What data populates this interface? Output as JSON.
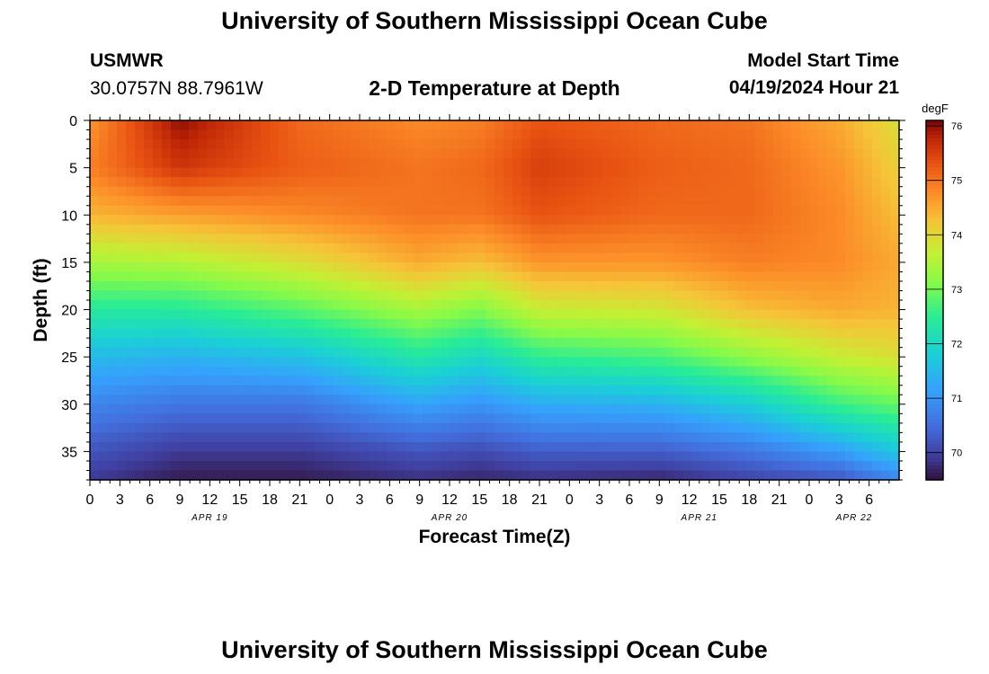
{
  "header": {
    "title": "University of Southern Mississippi Ocean Cube",
    "station": "USMWR",
    "coords": "30.0757N  88.7961W",
    "plot_title": "2-D Temperature at Depth",
    "model_label": "Model Start Time",
    "model_time": "04/19/2024 Hour 21"
  },
  "footer": {
    "title": "University of Southern Mississippi Ocean Cube"
  },
  "chart_data": {
    "type": "heatmap",
    "title": "2-D Temperature at Depth",
    "xlabel": "Forecast Time(Z)",
    "ylabel": "Depth (ft)",
    "x_range_hours": [
      0,
      81
    ],
    "x_tick_labels": [
      "0",
      "3",
      "6",
      "9",
      "12",
      "15",
      "18",
      "21",
      "0",
      "3",
      "6",
      "9",
      "12",
      "15",
      "18",
      "21",
      "0",
      "3",
      "6",
      "9",
      "12",
      "15",
      "18",
      "21",
      "0",
      "3",
      "6"
    ],
    "date_labels": [
      {
        "label": "APR 19",
        "hour": 12
      },
      {
        "label": "APR 20",
        "hour": 36
      },
      {
        "label": "APR 21",
        "hour": 61
      },
      {
        "label": "APR 22",
        "hour": 76.5
      }
    ],
    "ylim": [
      38,
      0
    ],
    "y_ticks": [
      0,
      5,
      10,
      15,
      20,
      25,
      30,
      35
    ],
    "colorbar": {
      "unit": "degF",
      "min": 69.5,
      "max": 76.1,
      "ticks": [
        70,
        71,
        72,
        73,
        74,
        75,
        76
      ]
    },
    "profile_columns": [
      {
        "hour": 0,
        "depth": [
          0,
          5,
          10,
          15,
          20,
          25,
          30,
          35,
          38
        ],
        "temp": [
          74.7,
          74.9,
          74.4,
          73.4,
          72.4,
          71.5,
          70.8,
          70.2,
          69.9
        ]
      },
      {
        "hour": 9,
        "depth": [
          0,
          5,
          10,
          15,
          20,
          25,
          30,
          35,
          38
        ],
        "temp": [
          76.0,
          75.6,
          74.6,
          73.5,
          72.4,
          71.4,
          70.6,
          69.9,
          69.6
        ]
      },
      {
        "hour": 21,
        "depth": [
          0,
          5,
          10,
          15,
          20,
          25,
          30,
          35,
          38
        ],
        "temp": [
          75.1,
          75.2,
          74.8,
          73.9,
          72.8,
          71.6,
          70.6,
          69.9,
          69.6
        ]
      },
      {
        "hour": 33,
        "depth": [
          0,
          5,
          10,
          15,
          20,
          25,
          30,
          35,
          38
        ],
        "temp": [
          74.8,
          75.0,
          75.0,
          74.5,
          73.4,
          72.3,
          71.2,
          70.2,
          69.8
        ]
      },
      {
        "hour": 39,
        "depth": [
          0,
          5,
          10,
          15,
          20,
          25,
          30,
          35,
          38
        ],
        "temp": [
          74.9,
          75.1,
          75.0,
          74.3,
          73.1,
          72.0,
          71.0,
          70.1,
          69.7
        ]
      },
      {
        "hour": 45,
        "depth": [
          0,
          5,
          10,
          15,
          20,
          25,
          30,
          35,
          38
        ],
        "temp": [
          75.3,
          75.5,
          75.3,
          74.7,
          73.7,
          72.5,
          71.3,
          70.3,
          69.8
        ]
      },
      {
        "hour": 57,
        "depth": [
          0,
          5,
          10,
          15,
          20,
          25,
          30,
          35,
          38
        ],
        "temp": [
          75.1,
          75.2,
          75.1,
          74.7,
          73.8,
          72.7,
          71.4,
          70.3,
          69.7
        ]
      },
      {
        "hour": 66,
        "depth": [
          0,
          5,
          10,
          15,
          20,
          25,
          30,
          35,
          38
        ],
        "temp": [
          75.0,
          75.1,
          75.1,
          74.9,
          74.3,
          73.2,
          71.8,
          70.6,
          70.0
        ]
      },
      {
        "hour": 75,
        "depth": [
          0,
          5,
          10,
          15,
          20,
          25,
          30,
          35,
          38
        ],
        "temp": [
          74.5,
          74.7,
          74.8,
          74.8,
          74.5,
          73.7,
          72.6,
          71.1,
          70.2
        ]
      },
      {
        "hour": 81,
        "depth": [
          0,
          5,
          10,
          15,
          20,
          25,
          30,
          35,
          38
        ],
        "temp": [
          73.9,
          74.1,
          74.3,
          74.5,
          74.4,
          73.9,
          72.9,
          71.7,
          70.8
        ]
      }
    ]
  }
}
